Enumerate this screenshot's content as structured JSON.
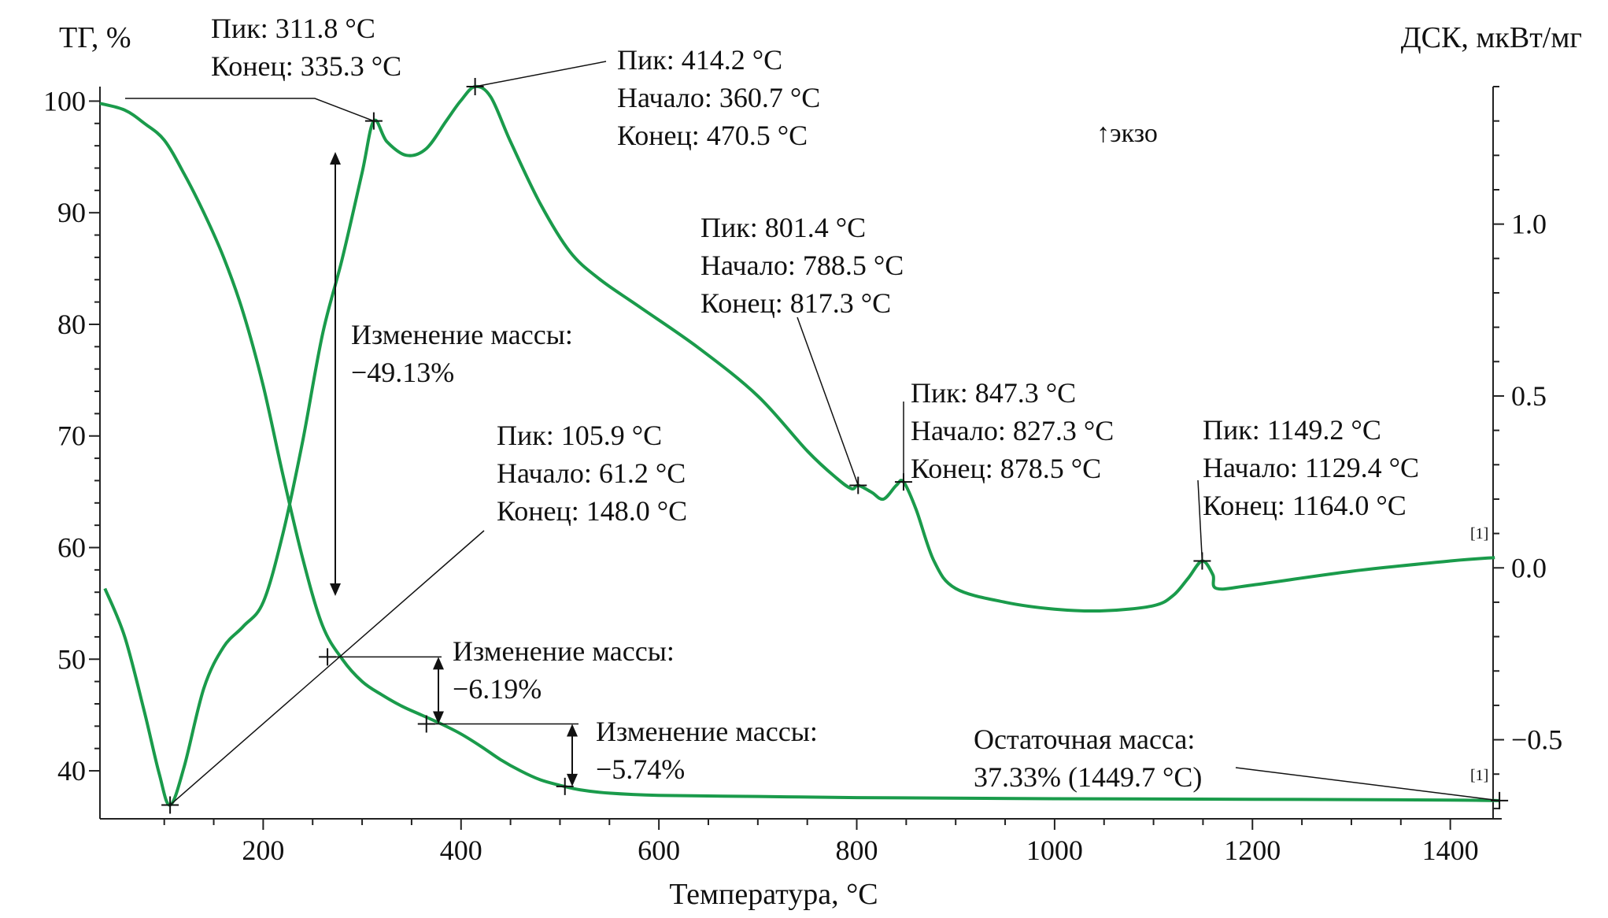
{
  "chart_data": {
    "type": "line",
    "title": "",
    "xlabel": "Температура, °C",
    "ylabel_left": "ТГ, %",
    "ylabel_right": "ДСК, мкВт/мг",
    "xlim": [
      35,
      1452
    ],
    "ylim_left": [
      35.7,
      101.3
    ],
    "ylim_right": [
      -0.73,
      1.4
    ],
    "x_ticks": [
      200,
      400,
      600,
      800,
      1000,
      1200,
      1400
    ],
    "y_ticks_left": [
      40,
      50,
      60,
      70,
      80,
      90,
      100
    ],
    "y_ticks_right": [
      -0.5,
      0.0,
      0.5,
      1.0
    ],
    "y_tick_labels_right": [
      "−0.5",
      "0.0",
      "0.5",
      "1.0"
    ],
    "grid": false,
    "line_color": "#1a9b4b",
    "exo_label": "↑экзо",
    "series_end_markers": [
      "[1]",
      "[1]"
    ],
    "series": [
      {
        "name": "",
        "axis": "left",
        "points": [
          [
            35,
            99.8
          ],
          [
            60,
            99.2
          ],
          [
            80,
            98.0
          ],
          [
            100,
            96.5
          ],
          [
            120,
            93.5
          ],
          [
            140,
            90.0
          ],
          [
            160,
            86.0
          ],
          [
            180,
            81.0
          ],
          [
            200,
            74.5
          ],
          [
            220,
            66.5
          ],
          [
            240,
            59.0
          ],
          [
            260,
            53.0
          ],
          [
            280,
            50.0
          ],
          [
            300,
            48.0
          ],
          [
            320,
            46.8
          ],
          [
            340,
            45.8
          ],
          [
            360,
            45.0
          ],
          [
            380,
            44.2
          ],
          [
            400,
            43.3
          ],
          [
            420,
            42.2
          ],
          [
            440,
            41.0
          ],
          [
            460,
            40.0
          ],
          [
            480,
            39.2
          ],
          [
            500,
            38.7
          ],
          [
            520,
            38.3
          ],
          [
            550,
            38.0
          ],
          [
            600,
            37.8
          ],
          [
            700,
            37.7
          ],
          [
            800,
            37.6
          ],
          [
            1000,
            37.5
          ],
          [
            1200,
            37.45
          ],
          [
            1400,
            37.38
          ],
          [
            1450,
            37.33
          ]
        ]
      },
      {
        "name": "",
        "axis": "right",
        "points": [
          [
            40,
            -0.06
          ],
          [
            60,
            -0.2
          ],
          [
            80,
            -0.42
          ],
          [
            95,
            -0.6
          ],
          [
            105.9,
            -0.69
          ],
          [
            120,
            -0.58
          ],
          [
            140,
            -0.35
          ],
          [
            160,
            -0.23
          ],
          [
            180,
            -0.17
          ],
          [
            200,
            -0.1
          ],
          [
            220,
            0.1
          ],
          [
            240,
            0.37
          ],
          [
            260,
            0.68
          ],
          [
            280,
            0.9
          ],
          [
            300,
            1.15
          ],
          [
            311.8,
            1.3
          ],
          [
            325,
            1.24
          ],
          [
            345,
            1.2
          ],
          [
            365,
            1.22
          ],
          [
            385,
            1.3
          ],
          [
            400,
            1.36
          ],
          [
            414.2,
            1.4
          ],
          [
            430,
            1.37
          ],
          [
            450,
            1.24
          ],
          [
            480,
            1.06
          ],
          [
            510,
            0.92
          ],
          [
            540,
            0.84
          ],
          [
            580,
            0.76
          ],
          [
            640,
            0.64
          ],
          [
            700,
            0.5
          ],
          [
            750,
            0.34
          ],
          [
            780,
            0.26
          ],
          [
            795,
            0.23
          ],
          [
            801.4,
            0.24
          ],
          [
            815,
            0.22
          ],
          [
            827,
            0.2
          ],
          [
            840,
            0.24
          ],
          [
            847.3,
            0.25
          ],
          [
            860,
            0.17
          ],
          [
            878,
            0.02
          ],
          [
            900,
            -0.06
          ],
          [
            950,
            -0.1
          ],
          [
            1000,
            -0.12
          ],
          [
            1050,
            -0.125
          ],
          [
            1100,
            -0.11
          ],
          [
            1120,
            -0.08
          ],
          [
            1135,
            -0.03
          ],
          [
            1149.2,
            0.02
          ],
          [
            1160,
            -0.02
          ],
          [
            1164,
            -0.06
          ],
          [
            1200,
            -0.05
          ],
          [
            1300,
            -0.01
          ],
          [
            1400,
            0.02
          ],
          [
            1445,
            0.03
          ]
        ]
      }
    ],
    "annotations": [
      {
        "lines": [
          "Пик: 311.8 °C",
          "Конец: 335.3 °C"
        ]
      },
      {
        "lines": [
          "Пик: 414.2 °C",
          "Начало: 360.7 °C",
          "Конец: 470.5 °C"
        ]
      },
      {
        "lines": [
          "Пик: 801.4 °C",
          "Начало: 788.5 °C",
          "Конец: 817.3 °C"
        ]
      },
      {
        "lines": [
          "Пик: 847.3 °C",
          "Начало: 827.3 °C",
          "Конец: 878.5 °C"
        ]
      },
      {
        "lines": [
          "Пик: 1149.2 °C",
          "Начало: 1129.4 °C",
          "Конец: 1164.0 °C"
        ]
      },
      {
        "lines": [
          "Пик: 105.9 °C",
          "Начало: 61.2 °C",
          "Конец: 148.0 °C"
        ]
      },
      {
        "lines": [
          "Изменение массы:",
          "−49.13%"
        ]
      },
      {
        "lines": [
          "Изменение массы:",
          "−6.19%"
        ]
      },
      {
        "lines": [
          "Изменение массы:",
          "−5.74%"
        ]
      },
      {
        "lines": [
          "Остаточная масса:",
          "37.33% (1449.7 °C)"
        ]
      }
    ]
  }
}
